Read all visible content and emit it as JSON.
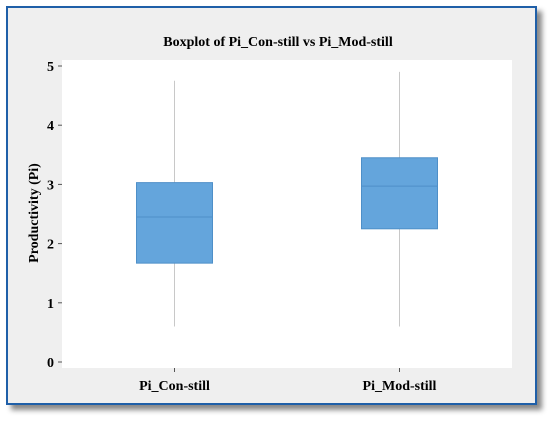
{
  "chart_data": {
    "type": "box",
    "title": "Boxplot of Pi_Con-still vs Pi_Mod-still",
    "xlabel": "",
    "ylabel": "Productivity (Pi)",
    "ylim": [
      0,
      5
    ],
    "yticks": [
      0,
      1,
      2,
      3,
      4,
      5
    ],
    "grid": false,
    "categories": [
      "Pi_Con-still",
      "Pi_Mod-still"
    ],
    "boxes": [
      {
        "name": "Pi_Con-still",
        "min": 0.6,
        "q1": 1.67,
        "median": 2.45,
        "q3": 3.03,
        "max": 4.75
      },
      {
        "name": "Pi_Mod-still",
        "min": 0.6,
        "q1": 2.25,
        "median": 2.97,
        "q3": 3.45,
        "max": 4.9
      }
    ],
    "colors": {
      "box_fill": "#64a5dc",
      "box_stroke": "#4e8fc8",
      "median": "#4e8fc8",
      "whisker": "#c8c8c8",
      "plot_bg": "#ffffff",
      "frame_bg": "#efefef",
      "frame_border": "#1f5fa8"
    }
  }
}
